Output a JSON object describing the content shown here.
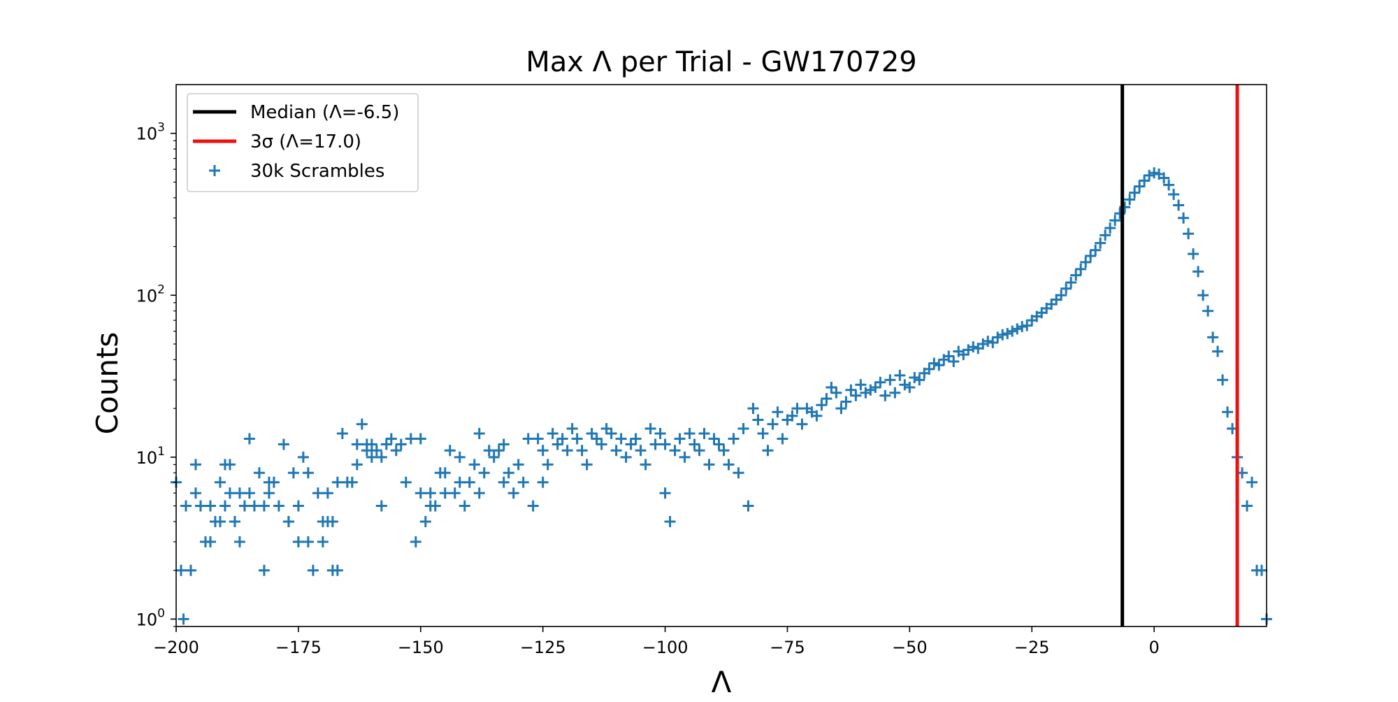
{
  "chart_data": {
    "type": "scatter",
    "title": "Max Λ per Trial - GW170729",
    "xlabel": "Λ",
    "ylabel": "Counts",
    "xlim": [
      -200,
      23
    ],
    "ylim": [
      0.9,
      2000
    ],
    "yscale": "log",
    "grid": false,
    "legend_position": "top-left",
    "x_ticks": [
      {
        "value": -200,
        "label": "−200"
      },
      {
        "value": -175,
        "label": "−175"
      },
      {
        "value": -150,
        "label": "−150"
      },
      {
        "value": -125,
        "label": "−125"
      },
      {
        "value": -100,
        "label": "−100"
      },
      {
        "value": -75,
        "label": "−75"
      },
      {
        "value": -50,
        "label": "−50"
      },
      {
        "value": -25,
        "label": "−25"
      },
      {
        "value": 0,
        "label": "0"
      }
    ],
    "y_ticks": [
      {
        "value": 1,
        "base": "10",
        "exp": "0"
      },
      {
        "value": 10,
        "base": "10",
        "exp": "1"
      },
      {
        "value": 100,
        "base": "10",
        "exp": "2"
      },
      {
        "value": 1000,
        "base": "10",
        "exp": "3"
      }
    ],
    "vlines": [
      {
        "name": "Median (Λ=-6.5)",
        "x": -6.5,
        "color": "#000000"
      },
      {
        "name": "3σ (Λ=17.0)",
        "x": 17.0,
        "color": "#ee1111"
      }
    ],
    "series": [
      {
        "name": "30k Scrambles",
        "color": "#1f77b4",
        "marker": "plus",
        "points": [
          [
            -200,
            7
          ],
          [
            -199,
            2
          ],
          [
            -198.5,
            1
          ],
          [
            -198,
            5
          ],
          [
            -197,
            2
          ],
          [
            -196,
            9
          ],
          [
            -196,
            6
          ],
          [
            -195,
            5
          ],
          [
            -194,
            3
          ],
          [
            -193,
            3
          ],
          [
            -193,
            5
          ],
          [
            -192,
            4
          ],
          [
            -191,
            7
          ],
          [
            -191,
            4
          ],
          [
            -190,
            9
          ],
          [
            -190,
            5
          ],
          [
            -189,
            9
          ],
          [
            -189,
            6
          ],
          [
            -188,
            4
          ],
          [
            -188,
            4
          ],
          [
            -187,
            3
          ],
          [
            -187,
            6
          ],
          [
            -186,
            5
          ],
          [
            -185,
            13
          ],
          [
            -185,
            6
          ],
          [
            -184,
            5
          ],
          [
            -183,
            8
          ],
          [
            -182,
            2
          ],
          [
            -182,
            5
          ],
          [
            -181,
            7
          ],
          [
            -181,
            6
          ],
          [
            -180,
            7
          ],
          [
            -179,
            5
          ],
          [
            -178,
            12
          ],
          [
            -177,
            4
          ],
          [
            -177,
            4
          ],
          [
            -176,
            8
          ],
          [
            -175,
            3
          ],
          [
            -175,
            5
          ],
          [
            -174,
            10
          ],
          [
            -173,
            3
          ],
          [
            -173,
            8
          ],
          [
            -172,
            2
          ],
          [
            -171,
            6
          ],
          [
            -170,
            3
          ],
          [
            -170,
            4
          ],
          [
            -169,
            6
          ],
          [
            -169,
            4
          ],
          [
            -168,
            2
          ],
          [
            -168,
            4
          ],
          [
            -167,
            2
          ],
          [
            -167,
            7
          ],
          [
            -166,
            14
          ],
          [
            -165,
            7
          ],
          [
            -164,
            7
          ],
          [
            -163,
            12
          ],
          [
            -163,
            9
          ],
          [
            -162,
            16
          ],
          [
            -161,
            12
          ],
          [
            -161,
            11
          ],
          [
            -160,
            10
          ],
          [
            -160,
            12
          ],
          [
            -159,
            11
          ],
          [
            -158,
            5
          ],
          [
            -158,
            10
          ],
          [
            -157,
            12
          ],
          [
            -156,
            13
          ],
          [
            -155,
            11
          ],
          [
            -154,
            12
          ],
          [
            -153,
            7
          ],
          [
            -152,
            13
          ],
          [
            -151,
            3
          ],
          [
            -150,
            13
          ],
          [
            -150,
            6
          ],
          [
            -149,
            4
          ],
          [
            -148,
            5
          ],
          [
            -148,
            6
          ],
          [
            -147,
            5
          ],
          [
            -146,
            8
          ],
          [
            -145,
            8
          ],
          [
            -145,
            6
          ],
          [
            -144,
            11
          ],
          [
            -143,
            6
          ],
          [
            -142,
            7
          ],
          [
            -142,
            10
          ],
          [
            -141,
            5
          ],
          [
            -140,
            7
          ],
          [
            -139,
            9
          ],
          [
            -138,
            14
          ],
          [
            -138,
            6
          ],
          [
            -137,
            8
          ],
          [
            -136,
            11
          ],
          [
            -135,
            10
          ],
          [
            -134,
            11
          ],
          [
            -133,
            12
          ],
          [
            -133,
            7
          ],
          [
            -132,
            8
          ],
          [
            -131,
            6
          ],
          [
            -130,
            9
          ],
          [
            -129,
            7
          ],
          [
            -128,
            13
          ],
          [
            -127,
            5
          ],
          [
            -126,
            13
          ],
          [
            -125,
            11
          ],
          [
            -125,
            7
          ],
          [
            -124,
            9
          ],
          [
            -123,
            14
          ],
          [
            -122,
            12
          ],
          [
            -121,
            13
          ],
          [
            -120,
            11
          ],
          [
            -119,
            15
          ],
          [
            -118,
            13
          ],
          [
            -117,
            11
          ],
          [
            -116,
            9
          ],
          [
            -115,
            14
          ],
          [
            -114,
            13
          ],
          [
            -113,
            12
          ],
          [
            -112,
            15
          ],
          [
            -111,
            14
          ],
          [
            -110,
            11
          ],
          [
            -109,
            13
          ],
          [
            -108,
            10
          ],
          [
            -107,
            12
          ],
          [
            -106,
            13
          ],
          [
            -105,
            11
          ],
          [
            -104,
            9
          ],
          [
            -103,
            15
          ],
          [
            -102,
            12
          ],
          [
            -101,
            14
          ],
          [
            -100,
            6
          ],
          [
            -100,
            12
          ],
          [
            -99,
            4
          ],
          [
            -98,
            11
          ],
          [
            -97,
            13
          ],
          [
            -96,
            10
          ],
          [
            -95,
            14
          ],
          [
            -94,
            12
          ],
          [
            -93,
            11
          ],
          [
            -92,
            14
          ],
          [
            -91,
            9
          ],
          [
            -90,
            13
          ],
          [
            -89,
            12
          ],
          [
            -88,
            11
          ],
          [
            -87,
            9
          ],
          [
            -86,
            13
          ],
          [
            -85,
            8
          ],
          [
            -84,
            15
          ],
          [
            -83,
            5
          ],
          [
            -82,
            20
          ],
          [
            -81,
            17
          ],
          [
            -80,
            14
          ],
          [
            -79,
            11
          ],
          [
            -78,
            16
          ],
          [
            -77,
            19
          ],
          [
            -76,
            13
          ],
          [
            -75,
            17
          ],
          [
            -74,
            18
          ],
          [
            -73,
            20
          ],
          [
            -72,
            16
          ],
          [
            -71,
            20
          ],
          [
            -70,
            19
          ],
          [
            -69,
            18
          ],
          [
            -68,
            21
          ],
          [
            -67,
            23
          ],
          [
            -66,
            27
          ],
          [
            -65,
            25
          ],
          [
            -64,
            20
          ],
          [
            -63,
            22
          ],
          [
            -62,
            26
          ],
          [
            -61,
            24
          ],
          [
            -60,
            28
          ],
          [
            -59,
            25
          ],
          [
            -58,
            26
          ],
          [
            -57,
            27
          ],
          [
            -56,
            29
          ],
          [
            -55,
            24
          ],
          [
            -54,
            30
          ],
          [
            -53,
            25
          ],
          [
            -52,
            32
          ],
          [
            -51,
            28
          ],
          [
            -50,
            27
          ],
          [
            -49,
            31
          ],
          [
            -48,
            30
          ],
          [
            -47,
            33
          ],
          [
            -46,
            35
          ],
          [
            -45,
            38
          ],
          [
            -44,
            37
          ],
          [
            -43,
            40
          ],
          [
            -42,
            42
          ],
          [
            -41,
            39
          ],
          [
            -40,
            45
          ],
          [
            -39,
            43
          ],
          [
            -38,
            46
          ],
          [
            -37,
            48
          ],
          [
            -36,
            47
          ],
          [
            -35,
            50
          ],
          [
            -34,
            52
          ],
          [
            -33,
            51
          ],
          [
            -32,
            55
          ],
          [
            -31,
            57
          ],
          [
            -30,
            58
          ],
          [
            -29,
            60
          ],
          [
            -28,
            62
          ],
          [
            -27,
            64
          ],
          [
            -26,
            65
          ],
          [
            -25,
            70
          ],
          [
            -24,
            74
          ],
          [
            -23,
            78
          ],
          [
            -22,
            83
          ],
          [
            -21,
            88
          ],
          [
            -20,
            94
          ],
          [
            -19,
            100
          ],
          [
            -18,
            110
          ],
          [
            -17,
            120
          ],
          [
            -16,
            133
          ],
          [
            -15,
            145
          ],
          [
            -14,
            160
          ],
          [
            -13,
            175
          ],
          [
            -12,
            190
          ],
          [
            -11,
            210
          ],
          [
            -10,
            235
          ],
          [
            -9,
            260
          ],
          [
            -8,
            290
          ],
          [
            -7,
            320
          ],
          [
            -6,
            350
          ],
          [
            -5,
            390
          ],
          [
            -4,
            430
          ],
          [
            -3,
            470
          ],
          [
            -2,
            510
          ],
          [
            -1,
            550
          ],
          [
            0,
            570
          ],
          [
            1,
            560
          ],
          [
            2,
            530
          ],
          [
            3,
            480
          ],
          [
            4,
            420
          ],
          [
            5,
            360
          ],
          [
            6,
            300
          ],
          [
            7,
            240
          ],
          [
            8,
            180
          ],
          [
            9,
            140
          ],
          [
            10,
            100
          ],
          [
            11,
            80
          ],
          [
            12,
            55
          ],
          [
            13,
            45
          ],
          [
            14,
            30
          ],
          [
            15,
            19
          ],
          [
            16,
            15
          ],
          [
            17,
            10
          ],
          [
            18,
            8
          ],
          [
            19,
            5
          ],
          [
            20,
            7
          ],
          [
            21,
            2
          ],
          [
            22,
            2
          ],
          [
            23,
            1
          ]
        ]
      }
    ]
  }
}
